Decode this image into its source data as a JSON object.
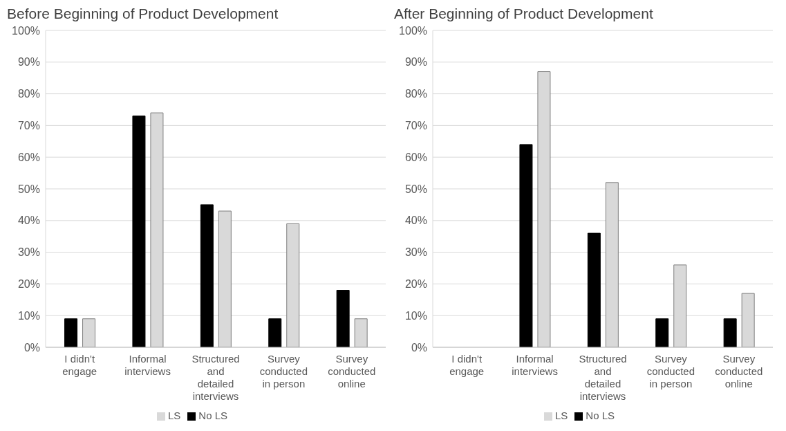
{
  "chart_data": [
    {
      "type": "bar",
      "title": "Before Beginning of Product Development",
      "categories": [
        "I didn't engage",
        "Informal interviews",
        "Structured and detailed interviews",
        "Survey conducted in person",
        "Survey conducted online"
      ],
      "series": [
        {
          "name": "No LS",
          "color": "#000000",
          "values": [
            9,
            73,
            45,
            9,
            18
          ]
        },
        {
          "name": "LS",
          "color": "#d9d9d9",
          "values": [
            9,
            74,
            43,
            39,
            9
          ]
        }
      ],
      "ylim": [
        0,
        100
      ],
      "yticks": [
        {
          "value": 0,
          "label": "0%"
        },
        {
          "value": 10,
          "label": "10%"
        },
        {
          "value": 20,
          "label": "20%"
        },
        {
          "value": 30,
          "label": "30%"
        },
        {
          "value": 40,
          "label": "40%"
        },
        {
          "value": 50,
          "label": "50%"
        },
        {
          "value": 60,
          "label": "60%"
        },
        {
          "value": 70,
          "label": "70%"
        },
        {
          "value": 80,
          "label": "80%"
        },
        {
          "value": 90,
          "label": "90%"
        },
        {
          "value": 100,
          "label": "100%"
        }
      ],
      "grid": "y",
      "legend": "bottom"
    },
    {
      "type": "bar",
      "title": "After Beginning of Product Development",
      "categories": [
        "I didn't engage",
        "Informal interviews",
        "Structured and detailed interviews",
        "Survey conducted in person",
        "Survey conducted online"
      ],
      "series": [
        {
          "name": "No LS",
          "color": "#000000",
          "values": [
            0,
            64,
            36,
            9,
            9
          ]
        },
        {
          "name": "LS",
          "color": "#d9d9d9",
          "values": [
            0,
            87,
            52,
            26,
            17
          ]
        }
      ],
      "ylim": [
        0,
        100
      ],
      "yticks": [
        {
          "value": 0,
          "label": "0%"
        },
        {
          "value": 10,
          "label": "10%"
        },
        {
          "value": 20,
          "label": "20%"
        },
        {
          "value": 30,
          "label": "30%"
        },
        {
          "value": 40,
          "label": "40%"
        },
        {
          "value": 50,
          "label": "50%"
        },
        {
          "value": 60,
          "label": "60%"
        },
        {
          "value": 70,
          "label": "70%"
        },
        {
          "value": 80,
          "label": "80%"
        },
        {
          "value": 90,
          "label": "90%"
        },
        {
          "value": 100,
          "label": "100%"
        }
      ],
      "grid": "y",
      "legend": "bottom"
    }
  ]
}
